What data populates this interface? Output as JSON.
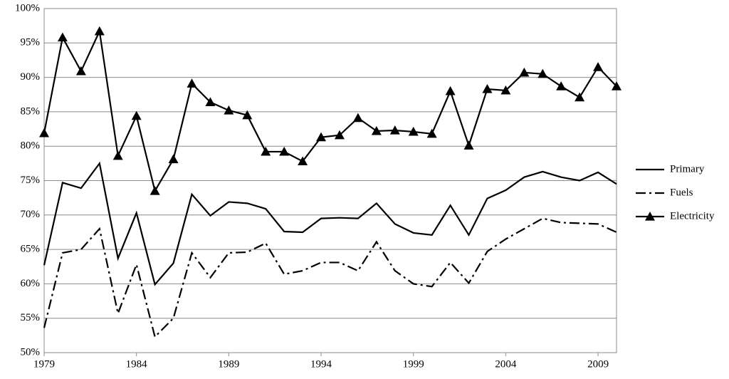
{
  "chart_data": {
    "type": "line",
    "x": [
      1979,
      1980,
      1981,
      1982,
      1983,
      1984,
      1985,
      1986,
      1987,
      1988,
      1989,
      1990,
      1991,
      1992,
      1993,
      1994,
      1995,
      1996,
      1997,
      1998,
      1999,
      2000,
      2001,
      2002,
      2003,
      2004,
      2005,
      2006,
      2007,
      2008,
      2009,
      2010
    ],
    "xlim": [
      1979,
      2010
    ],
    "xticks": [
      1979,
      1984,
      1989,
      1994,
      1999,
      2004,
      2009
    ],
    "ylim": [
      50,
      100
    ],
    "yticks": [
      {
        "value": 50,
        "label": "50%"
      },
      {
        "value": 55,
        "label": "55%"
      },
      {
        "value": 60,
        "label": "60%"
      },
      {
        "value": 65,
        "label": "65%"
      },
      {
        "value": 70,
        "label": "70%"
      },
      {
        "value": 75,
        "label": "75%"
      },
      {
        "value": 80,
        "label": "80%"
      },
      {
        "value": 85,
        "label": "85%"
      },
      {
        "value": 90,
        "label": "90%"
      },
      {
        "value": 95,
        "label": "95%"
      },
      {
        "value": 100,
        "label": "100%"
      }
    ],
    "grid": true,
    "legend": "right",
    "series": [
      {
        "name": "Primary",
        "color": "#000000",
        "dash": "solid",
        "marker": "none",
        "values": [
          62.7,
          74.7,
          73.9,
          77.5,
          63.7,
          70.3,
          59.9,
          63.0,
          73.0,
          69.9,
          71.9,
          71.7,
          70.9,
          67.6,
          67.5,
          69.5,
          69.6,
          69.5,
          71.7,
          68.7,
          67.4,
          67.1,
          71.4,
          67.1,
          72.4,
          73.6,
          75.5,
          76.3,
          75.5,
          75.0,
          76.2,
          74.5
        ]
      },
      {
        "name": "Fuels",
        "color": "#000000",
        "dash": "dash-dot",
        "marker": "none",
        "values": [
          53.6,
          64.5,
          65.0,
          68.0,
          55.7,
          62.8,
          52.3,
          55.0,
          64.5,
          60.9,
          64.5,
          64.6,
          65.9,
          61.4,
          61.9,
          63.1,
          63.1,
          61.9,
          66.1,
          61.9,
          60.0,
          59.6,
          63.1,
          60.1,
          64.7,
          66.5,
          68.0,
          69.5,
          68.9,
          68.8,
          68.7,
          67.5
        ]
      },
      {
        "name": "Electricity",
        "color": "#000000",
        "dash": "solid",
        "marker": "triangle",
        "values": [
          81.9,
          95.8,
          90.9,
          96.7,
          78.6,
          84.4,
          73.5,
          78.1,
          89.1,
          86.4,
          85.2,
          84.5,
          79.2,
          79.2,
          77.8,
          81.3,
          81.6,
          84.1,
          82.2,
          82.3,
          82.1,
          81.8,
          88.0,
          80.1,
          88.3,
          88.1,
          90.7,
          90.5,
          88.7,
          87.1,
          91.5,
          88.7
        ]
      }
    ]
  }
}
